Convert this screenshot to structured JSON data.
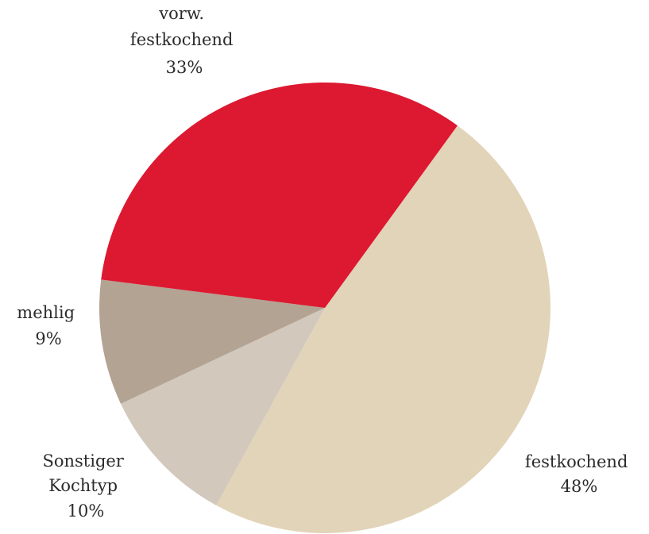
{
  "chart_data": {
    "type": "pie",
    "title": "",
    "start_angle_deg": -54,
    "direction": "clockwise",
    "slices": [
      {
        "label_lines": [
          "festkochend"
        ],
        "percent_label": "48%",
        "value": 48,
        "color": "#e2d4b9"
      },
      {
        "label_lines": [
          "Sonstiger",
          "Kochtyp"
        ],
        "percent_label": "10%",
        "value": 10,
        "color": "#d2c8bc"
      },
      {
        "label_lines": [
          "mehlig"
        ],
        "percent_label": "9%",
        "value": 9,
        "color": "#b3a393"
      },
      {
        "label_lines": [
          "vorw.",
          "festkochend"
        ],
        "percent_label": "33%",
        "value": 33,
        "color": "#dc1931"
      }
    ]
  }
}
